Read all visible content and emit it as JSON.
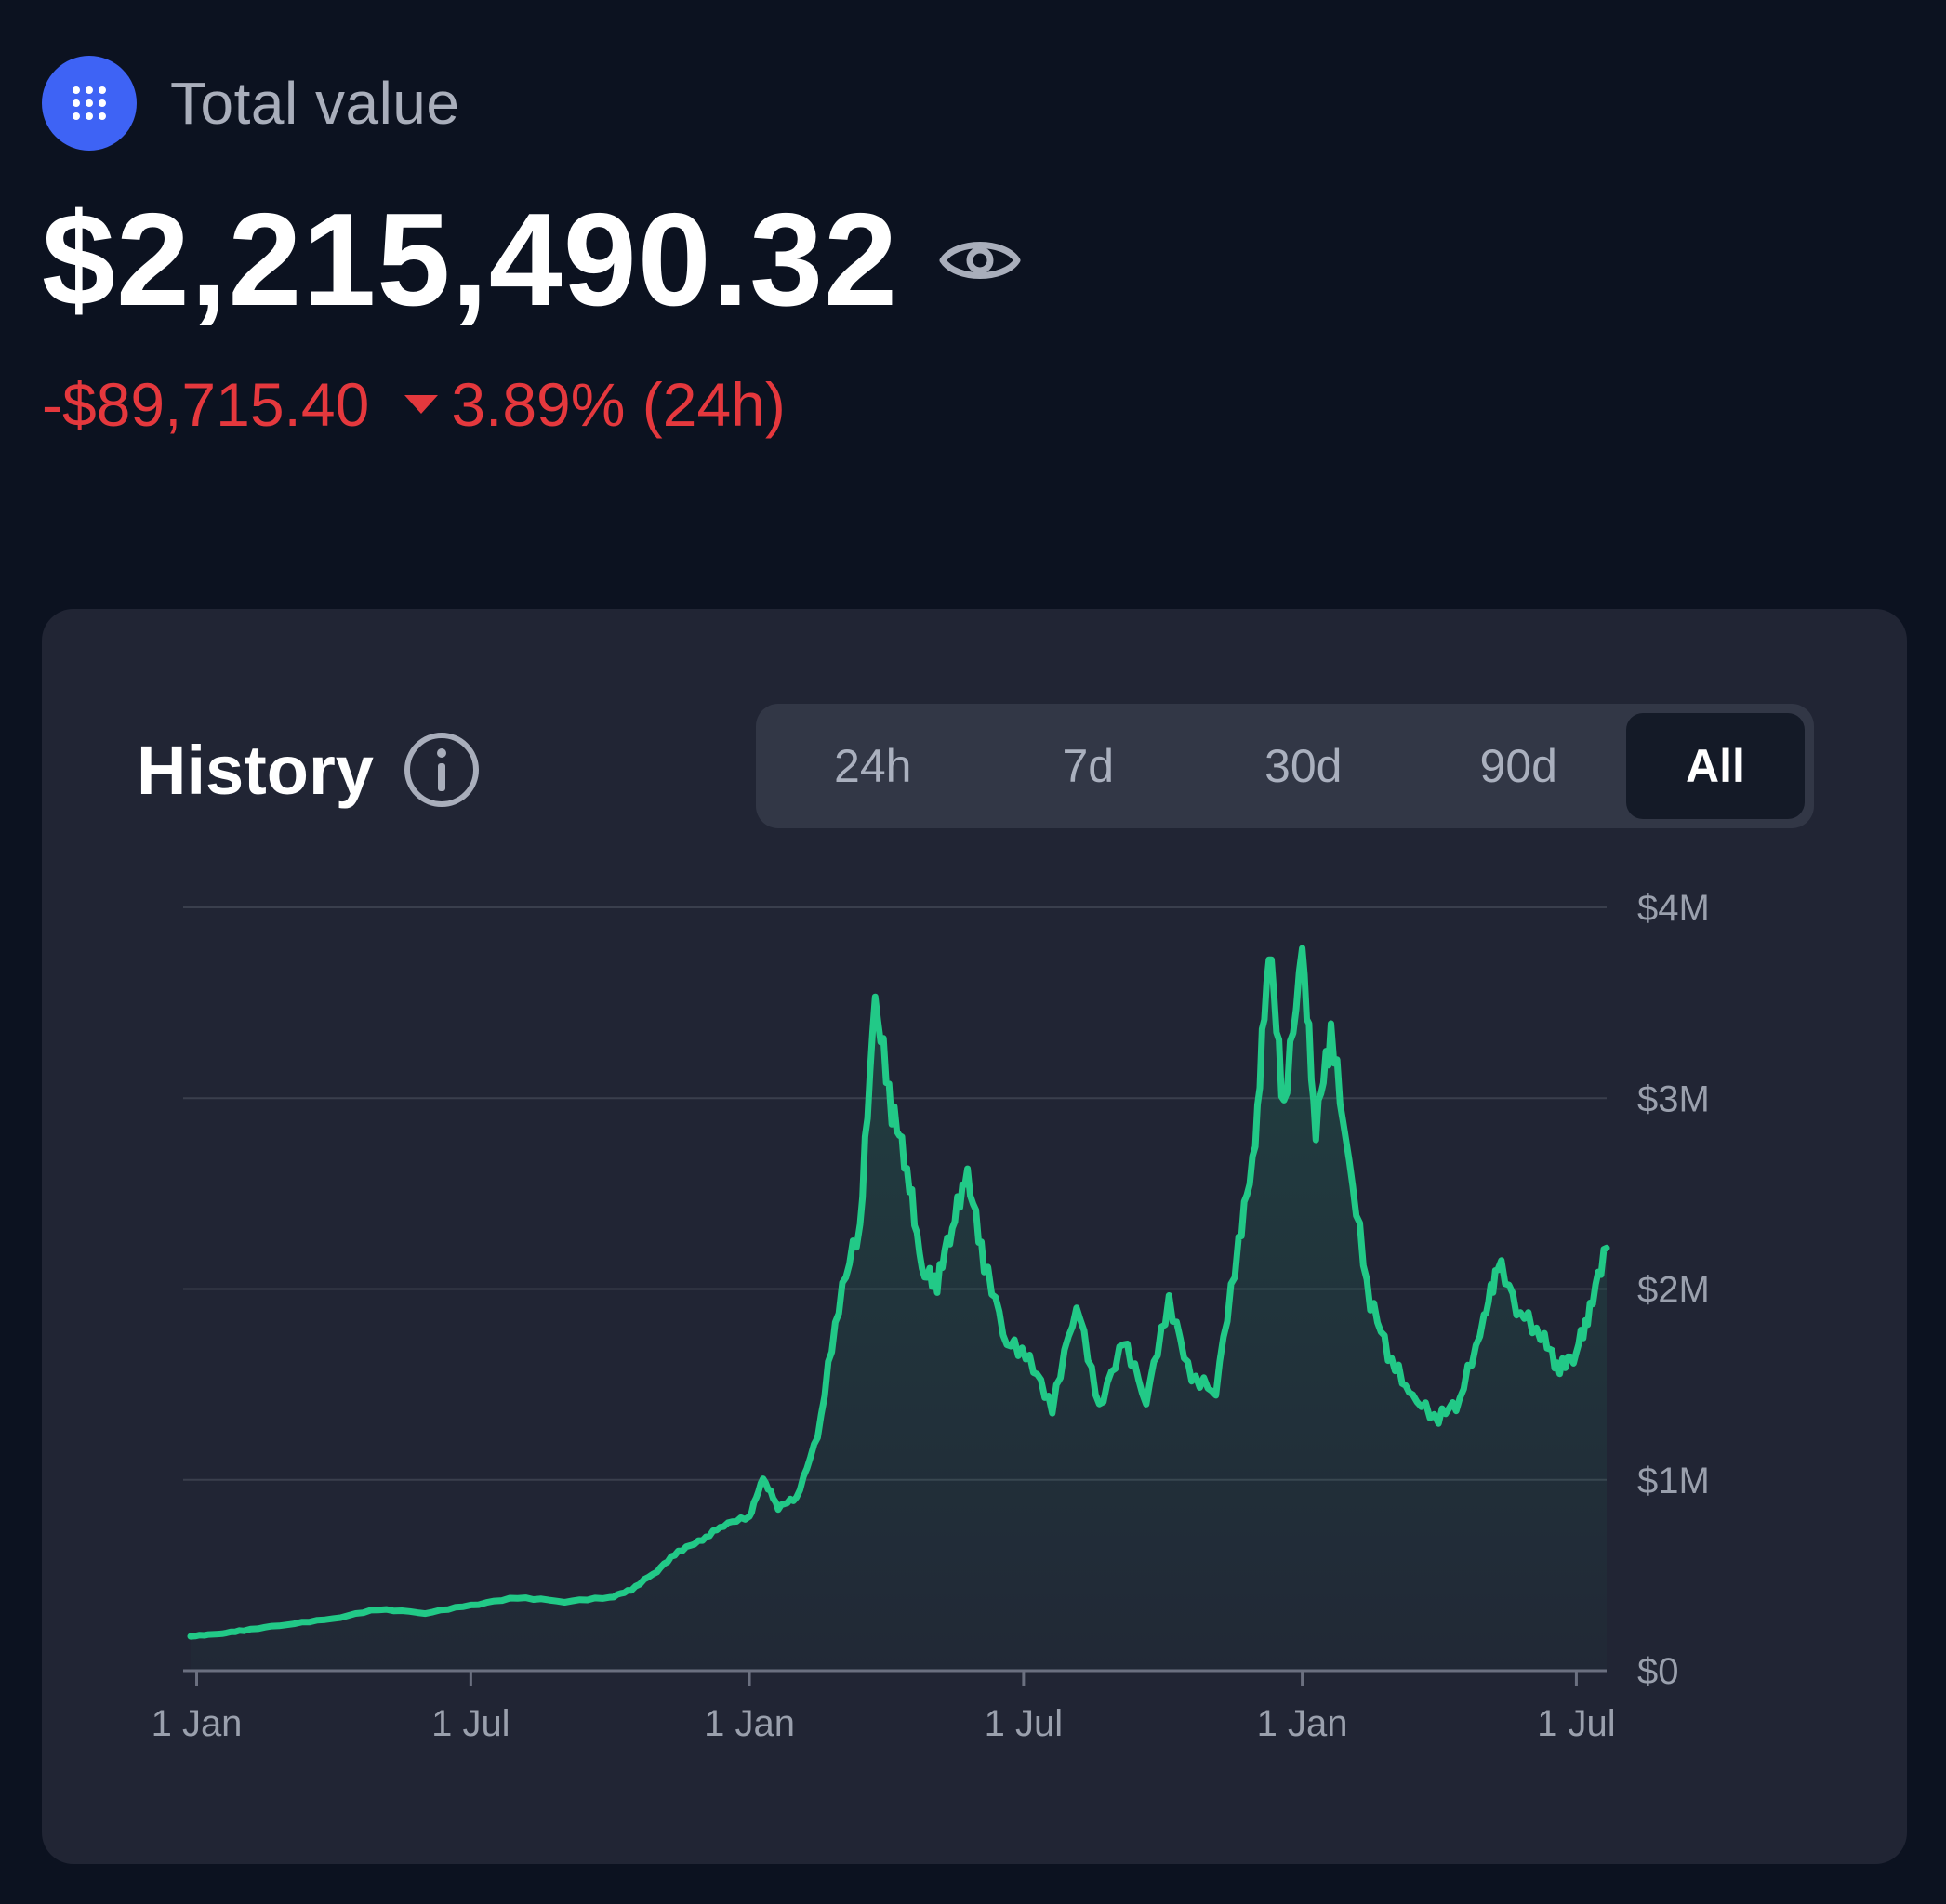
{
  "header": {
    "icon": "grid-dots-icon",
    "label": "Total value"
  },
  "total": {
    "value": "$2,215,490.32",
    "visibility_icon": "eye-icon"
  },
  "change": {
    "amount": "-$89,715.40",
    "direction_icon": "caret-down-icon",
    "percent": "3.89% (24h)"
  },
  "history": {
    "title": "History",
    "info_icon": "info-icon",
    "tabs": [
      {
        "label": "24h",
        "active": false
      },
      {
        "label": "7d",
        "active": false
      },
      {
        "label": "30d",
        "active": false
      },
      {
        "label": "90d",
        "active": false
      },
      {
        "label": "All",
        "active": true
      }
    ]
  },
  "colors": {
    "background": "#0c1220",
    "card": "#212534",
    "accent_blue": "#3e63f5",
    "negative": "#e5383d",
    "line": "#22c987",
    "grid": "#3a3f4d",
    "tick_text": "#9aa0ad"
  },
  "chart_data": {
    "type": "area",
    "title": "",
    "xlabel": "",
    "ylabel": "",
    "x_range": [
      "2020-12-28",
      "2023-07-21"
    ],
    "ylim": [
      0,
      4000000
    ],
    "y_ticks": [
      {
        "value": 0,
        "label": "$0"
      },
      {
        "value": 1000000,
        "label": "$1M"
      },
      {
        "value": 2000000,
        "label": "$2M"
      },
      {
        "value": 3000000,
        "label": "$3M"
      },
      {
        "value": 4000000,
        "label": "$4M"
      }
    ],
    "x_ticks": [
      {
        "date": "2021-01-01",
        "label": "1 Jan"
      },
      {
        "date": "2021-07-01",
        "label": "1 Jul"
      },
      {
        "date": "2022-01-01",
        "label": "1 Jan"
      },
      {
        "date": "2022-07-01",
        "label": "1 Jul"
      },
      {
        "date": "2023-01-01",
        "label": "1 Jan"
      },
      {
        "date": "2023-07-01",
        "label": "1 Jul"
      }
    ],
    "grid": true,
    "y_axis_position": "right",
    "series": [
      {
        "values": [
          [
            "2020-12-28",
            180000
          ],
          [
            "2021-01-15",
            190000
          ],
          [
            "2021-02-01",
            210000
          ],
          [
            "2021-03-01",
            240000
          ],
          [
            "2021-04-01",
            270000
          ],
          [
            "2021-05-01",
            320000
          ],
          [
            "2021-06-01",
            300000
          ],
          [
            "2021-07-01",
            340000
          ],
          [
            "2021-08-01",
            380000
          ],
          [
            "2021-09-01",
            360000
          ],
          [
            "2021-10-01",
            380000
          ],
          [
            "2021-10-15",
            420000
          ],
          [
            "2021-11-01",
            520000
          ],
          [
            "2021-11-15",
            620000
          ],
          [
            "2021-12-01",
            680000
          ],
          [
            "2021-12-15",
            760000
          ],
          [
            "2022-01-01",
            800000
          ],
          [
            "2022-01-10",
            1000000
          ],
          [
            "2022-01-20",
            850000
          ],
          [
            "2022-02-01",
            900000
          ],
          [
            "2022-02-15",
            1200000
          ],
          [
            "2022-03-01",
            1900000
          ],
          [
            "2022-03-15",
            2300000
          ],
          [
            "2022-03-25",
            3450000
          ],
          [
            "2022-04-05",
            2900000
          ],
          [
            "2022-04-15",
            2600000
          ],
          [
            "2022-04-25",
            2050000
          ],
          [
            "2022-05-05",
            2000000
          ],
          [
            "2022-05-15",
            2300000
          ],
          [
            "2022-05-25",
            2550000
          ],
          [
            "2022-06-05",
            2100000
          ],
          [
            "2022-06-20",
            1700000
          ],
          [
            "2022-07-05",
            1600000
          ],
          [
            "2022-07-20",
            1350000
          ],
          [
            "2022-08-05",
            1900000
          ],
          [
            "2022-08-20",
            1350000
          ],
          [
            "2022-09-05",
            1700000
          ],
          [
            "2022-09-20",
            1400000
          ],
          [
            "2022-10-05",
            1900000
          ],
          [
            "2022-10-20",
            1500000
          ],
          [
            "2022-11-05",
            1450000
          ],
          [
            "2022-11-20",
            2200000
          ],
          [
            "2022-12-01",
            2700000
          ],
          [
            "2022-12-10",
            3750000
          ],
          [
            "2022-12-20",
            2900000
          ],
          [
            "2023-01-01",
            3700000
          ],
          [
            "2023-01-10",
            2800000
          ],
          [
            "2023-01-20",
            3300000
          ],
          [
            "2023-02-01",
            2600000
          ],
          [
            "2023-02-15",
            1900000
          ],
          [
            "2023-03-01",
            1600000
          ],
          [
            "2023-03-15",
            1400000
          ],
          [
            "2023-04-01",
            1300000
          ],
          [
            "2023-04-15",
            1400000
          ],
          [
            "2023-05-01",
            1800000
          ],
          [
            "2023-05-10",
            2100000
          ],
          [
            "2023-05-25",
            1850000
          ],
          [
            "2023-06-10",
            1700000
          ],
          [
            "2023-06-20",
            1550000
          ],
          [
            "2023-07-01",
            1650000
          ],
          [
            "2023-07-10",
            1850000
          ],
          [
            "2023-07-21",
            2215490
          ]
        ]
      }
    ]
  }
}
